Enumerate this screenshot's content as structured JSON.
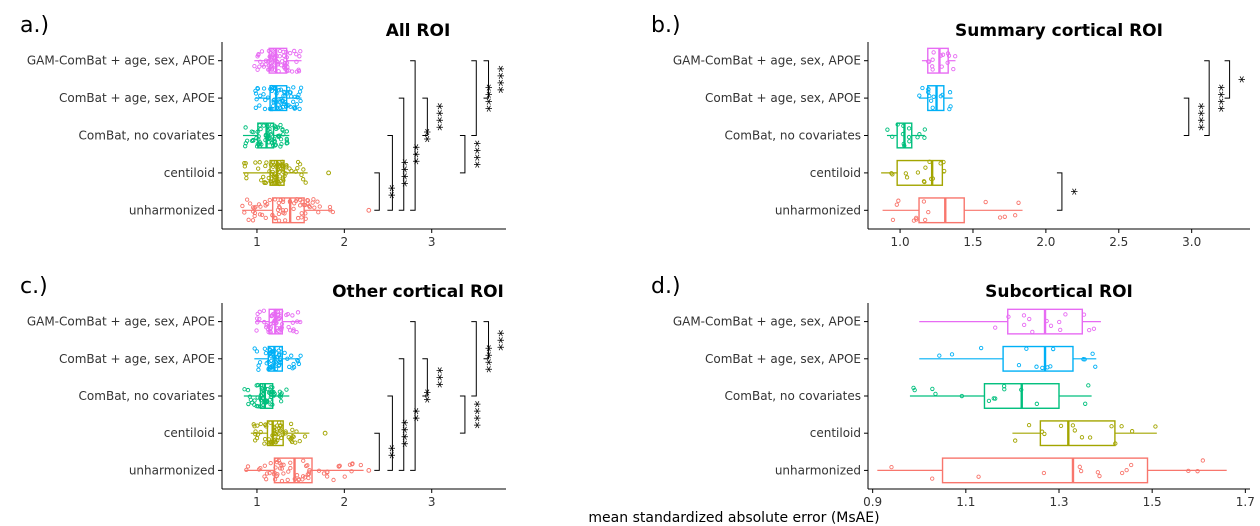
{
  "figure": {
    "xlabel": "mean standardized absolute error (MsAE)"
  },
  "colors": {
    "unharmonized": "#F8766D",
    "centiloid": "#A3A500",
    "combat_nocov": "#00BF7D",
    "combat": "#00B0F6",
    "gam": "#E76BF3"
  },
  "chart_data": [
    {
      "type": "boxplot",
      "panel_label": "a.)",
      "title": "All ROI",
      "categories": [
        "GAM-ComBat + age, sex, APOE",
        "ComBat + age, sex, APOE",
        "ComBat, no covariates",
        "centiloid",
        "unharmonized"
      ],
      "xlim": [
        0.6,
        3.85
      ],
      "xticks": [
        1,
        2,
        3
      ],
      "xtick_labels": [
        "1",
        "2",
        "3"
      ],
      "boxes": [
        {
          "whisker_low": 0.97,
          "q1": 1.14,
          "median": 1.22,
          "q3": 1.34,
          "whisker_high": 1.51
        },
        {
          "whisker_low": 0.98,
          "q1": 1.15,
          "median": 1.22,
          "q3": 1.34,
          "whisker_high": 1.51
        },
        {
          "whisker_low": 0.84,
          "q1": 1.01,
          "median": 1.11,
          "q3": 1.19,
          "whisker_high": 1.37
        },
        {
          "whisker_low": 0.84,
          "q1": 1.15,
          "median": 1.23,
          "q3": 1.31,
          "whisker_high": 1.58
        },
        {
          "whisker_low": 0.83,
          "q1": 1.18,
          "median": 1.38,
          "q3": 1.54,
          "whisker_high": 1.87
        }
      ],
      "outliers": [
        [],
        [],
        [],
        [
          1.82
        ],
        [
          2.28
        ]
      ],
      "point_counts": [
        70,
        70,
        70,
        70,
        70
      ],
      "significance": [
        {
          "from": 3,
          "to": 4,
          "label": "**",
          "x": 2.4
        },
        {
          "from": 2,
          "to": 4,
          "label": "****",
          "x": 2.55
        },
        {
          "from": 1,
          "to": 4,
          "label": "***",
          "x": 2.68
        },
        {
          "from": 0,
          "to": 4,
          "label": "**",
          "x": 2.81
        },
        {
          "from": 1,
          "to": 2,
          "label": "****",
          "x": 2.95
        },
        {
          "from": 2,
          "to": 2.999,
          "label": "****",
          "x": 3.38
        },
        {
          "from": 0,
          "to": 2,
          "label": "****",
          "x": 3.51
        },
        {
          "from": 0,
          "to": 1,
          "label": "****",
          "x": 3.65
        }
      ]
    },
    {
      "type": "boxplot",
      "panel_label": "b.)",
      "title": "Summary cortical ROI",
      "categories": [
        "GAM-ComBat + age, sex, APOE",
        "ComBat + age, sex, APOE",
        "ComBat, no covariates",
        "centiloid",
        "unharmonized"
      ],
      "xlim": [
        0.78,
        3.4
      ],
      "xticks": [
        1.0,
        1.5,
        2.0,
        2.5,
        3.0
      ],
      "xtick_labels": [
        "1.0",
        "1.5",
        "2.0",
        "2.5",
        "3.0"
      ],
      "boxes": [
        {
          "whisker_low": 1.15,
          "q1": 1.19,
          "median": 1.27,
          "q3": 1.33,
          "whisker_high": 1.38
        },
        {
          "whisker_low": 1.13,
          "q1": 1.19,
          "median": 1.25,
          "q3": 1.3,
          "whisker_high": 1.36
        },
        {
          "whisker_low": 0.91,
          "q1": 0.98,
          "median": 1.03,
          "q3": 1.08,
          "whisker_high": 1.17
        },
        {
          "whisker_low": 0.87,
          "q1": 0.98,
          "median": 1.22,
          "q3": 1.29,
          "whisker_high": 1.31
        },
        {
          "whisker_low": 0.88,
          "q1": 1.13,
          "median": 1.31,
          "q3": 1.44,
          "whisker_high": 1.84
        }
      ],
      "outliers": [
        [],
        [],
        [],
        [],
        []
      ],
      "point_counts": [
        14,
        14,
        14,
        14,
        14
      ],
      "significance": [
        {
          "from": 3,
          "to": 4,
          "label": "*",
          "x": 2.11
        },
        {
          "from": 1,
          "to": 2,
          "label": "****",
          "x": 2.98
        },
        {
          "from": 0,
          "to": 2,
          "label": "****",
          "x": 3.12
        },
        {
          "from": 0,
          "to": 1,
          "label": "*",
          "x": 3.26
        }
      ]
    },
    {
      "type": "boxplot",
      "panel_label": "c.)",
      "title": "Other cortical ROI",
      "categories": [
        "GAM-ComBat + age, sex, APOE",
        "ComBat + age, sex, APOE",
        "ComBat, no covariates",
        "centiloid",
        "unharmonized"
      ],
      "xlim": [
        0.6,
        3.85
      ],
      "xticks": [
        1,
        2,
        3
      ],
      "xtick_labels": [
        "1",
        "2",
        "3"
      ],
      "boxes": [
        {
          "whisker_low": 0.98,
          "q1": 1.14,
          "median": 1.21,
          "q3": 1.29,
          "whisker_high": 1.5
        },
        {
          "whisker_low": 0.97,
          "q1": 1.13,
          "median": 1.2,
          "q3": 1.29,
          "whisker_high": 1.5
        },
        {
          "whisker_low": 0.85,
          "q1": 1.04,
          "median": 1.09,
          "q3": 1.18,
          "whisker_high": 1.37
        },
        {
          "whisker_low": 0.93,
          "q1": 1.12,
          "median": 1.18,
          "q3": 1.3,
          "whisker_high": 1.6
        },
        {
          "whisker_low": 0.86,
          "q1": 1.2,
          "median": 1.43,
          "q3": 1.63,
          "whisker_high": 2.22
        }
      ],
      "outliers": [
        [],
        [],
        [],
        [
          1.78
        ],
        [
          2.28
        ]
      ],
      "point_counts": [
        60,
        60,
        60,
        60,
        60
      ],
      "significance": [
        {
          "from": 3,
          "to": 4,
          "label": "**",
          "x": 2.4
        },
        {
          "from": 2,
          "to": 4,
          "label": "****",
          "x": 2.55
        },
        {
          "from": 1,
          "to": 4,
          "label": "**",
          "x": 2.68
        },
        {
          "from": 0,
          "to": 4,
          "label": "**",
          "x": 2.81
        },
        {
          "from": 1,
          "to": 2,
          "label": "***",
          "x": 2.95
        },
        {
          "from": 2,
          "to": 2.999,
          "label": "****",
          "x": 3.38
        },
        {
          "from": 0,
          "to": 2,
          "label": "****",
          "x": 3.51
        },
        {
          "from": 0,
          "to": 1,
          "label": "***",
          "x": 3.65
        }
      ]
    },
    {
      "type": "boxplot",
      "panel_label": "d.)",
      "title": "Subcortical ROI",
      "categories": [
        "GAM-ComBat + age, sex, APOE",
        "ComBat + age, sex, APOE",
        "ComBat, no covariates",
        "centiloid",
        "unharmonized"
      ],
      "xlim": [
        0.89,
        1.71
      ],
      "xticks": [
        0.9,
        1.1,
        1.3,
        1.5,
        1.7
      ],
      "xtick_labels": [
        "0.9",
        "1.1",
        "1.3",
        "1.5",
        "1.7"
      ],
      "boxes": [
        {
          "whisker_low": 1.0,
          "q1": 1.19,
          "median": 1.27,
          "q3": 1.35,
          "whisker_high": 1.39
        },
        {
          "whisker_low": 1.0,
          "q1": 1.18,
          "median": 1.27,
          "q3": 1.33,
          "whisker_high": 1.38
        },
        {
          "whisker_low": 0.98,
          "q1": 1.14,
          "median": 1.22,
          "q3": 1.3,
          "whisker_high": 1.37
        },
        {
          "whisker_low": 1.2,
          "q1": 1.26,
          "median": 1.32,
          "q3": 1.42,
          "whisker_high": 1.51
        },
        {
          "whisker_low": 0.91,
          "q1": 1.05,
          "median": 1.33,
          "q3": 1.49,
          "whisker_high": 1.66
        }
      ],
      "outliers": [
        [],
        [],
        [],
        [],
        []
      ],
      "point_counts": [
        14,
        14,
        14,
        14,
        14
      ],
      "significance": []
    }
  ]
}
